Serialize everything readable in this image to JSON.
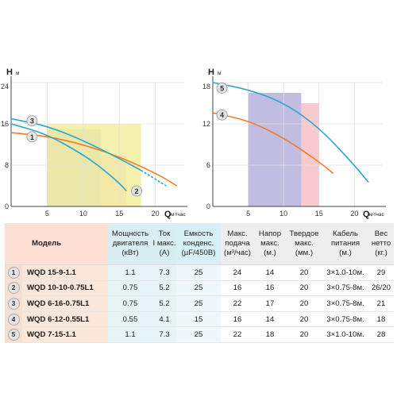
{
  "chart_data": [
    {
      "type": "line",
      "y_label": "H",
      "y_unit": "м",
      "x_label": "Q",
      "x_unit": "м³/час",
      "xlim": [
        0,
        24
      ],
      "ylim": [
        0,
        24
      ],
      "x_ticks": [
        5,
        10,
        15,
        20
      ],
      "y_ticks": [
        0,
        8,
        16,
        24
      ],
      "regions": [
        {
          "x": [
            5,
            12.5
          ],
          "y_top": 15,
          "color": "#b6b0dc"
        },
        {
          "x": [
            12.5,
            16
          ],
          "y_top": 10,
          "color": "#f4c1c6"
        },
        {
          "x": [
            5,
            18
          ],
          "y_top": 16,
          "color": "#f2ee9f"
        }
      ],
      "series": [
        {
          "name": "1",
          "color": "#f47a26",
          "x": [
            0,
            5,
            10,
            15,
            20,
            23
          ],
          "y": [
            14.3,
            13.6,
            12,
            9.6,
            6.5,
            4
          ]
        },
        {
          "name": "2",
          "color": "#2aa6cf",
          "x": [
            0,
            5,
            10,
            12.5,
            15,
            16
          ],
          "y": [
            16,
            14,
            10,
            7.5,
            4.5,
            3
          ]
        },
        {
          "name": "3",
          "color": "#2aa6cf",
          "x": [
            0,
            5,
            10,
            15,
            18
          ],
          "y": [
            17,
            15.6,
            12.8,
            9.3,
            7
          ],
          "dashed_tail": {
            "x": [
              18,
              21.5
            ],
            "y": [
              7,
              4
            ]
          }
        }
      ],
      "labels": [
        {
          "text": "3",
          "x": 2.9,
          "y": 16.6
        },
        {
          "text": "1",
          "x": 2.9,
          "y": 13.5
        },
        {
          "text": "2",
          "x": 17.4,
          "y": 3
        }
      ]
    },
    {
      "type": "line",
      "y_label": "H",
      "y_unit": "м",
      "x_label": "Q",
      "x_unit": "м³/час",
      "xlim": [
        0,
        24
      ],
      "ylim": [
        0,
        18
      ],
      "x_ticks": [
        5,
        10,
        15,
        20
      ],
      "y_ticks": [
        0,
        6,
        12,
        18
      ],
      "regions": [
        {
          "x": [
            5,
            12.5
          ],
          "y_top": 16.5,
          "color": "#b6b0dc"
        },
        {
          "x": [
            12.5,
            15
          ],
          "y_top": 15,
          "color": "#f4c1c6"
        }
      ],
      "series": [
        {
          "name": "5",
          "color": "#2aa6cf",
          "x": [
            0,
            5,
            10,
            15,
            20,
            22
          ],
          "y": [
            18,
            17,
            15.1,
            11.5,
            6,
            3.5
          ]
        },
        {
          "name": "4",
          "color": "#f47a26",
          "x": [
            0,
            5,
            10,
            15,
            17
          ],
          "y": [
            13.6,
            12.5,
            10,
            6.5,
            4.8
          ]
        }
      ],
      "labels": [
        {
          "text": "5",
          "x": 1.3,
          "y": 17.2
        },
        {
          "text": "4",
          "x": 1.3,
          "y": 13.3
        }
      ]
    }
  ],
  "table": {
    "headers": [
      "Модель",
      "Мощность двигателя (кВт)",
      "Ток I макс. (А)",
      "Емкость конденс. (µF/450B)",
      "Макс. подача (м³/час)",
      "Напор макс. (м.)",
      "Твердое макс. (мм.)",
      "Кабель питания (м.)",
      "Вес нетто (кг.)"
    ],
    "header_lines": [
      [
        "Модель"
      ],
      [
        "Мощность",
        "двигателя",
        "(кВт)"
      ],
      [
        "Ток",
        "I макс.",
        "(А)"
      ],
      [
        "Емкость",
        "конденс.",
        "(µF/450B)"
      ],
      [
        "Макс.",
        "подача",
        "(м³/час)"
      ],
      [
        "Напор",
        "макс.",
        "(м.)"
      ],
      [
        "Твердое",
        "макс.",
        "(мм.)"
      ],
      [
        "Кабель",
        "питания",
        "(м.)"
      ],
      [
        "Вес",
        "нетто",
        "(кг.)"
      ]
    ],
    "rows": [
      [
        "1",
        "WQD 15-9-1.1",
        "1.1",
        "7.3",
        "25",
        "24",
        "14",
        "20",
        "3×1.0-10м.",
        "29"
      ],
      [
        "2",
        "WQD 10-10-0.75L1",
        "0.75",
        "5.2",
        "25",
        "16",
        "16",
        "20",
        "3×0.75-8м.",
        "26/20"
      ],
      [
        "3",
        "WQD 6-16-0.75L1",
        "0.75",
        "5.2",
        "25",
        "22",
        "17",
        "20",
        "3×0.75-8м.",
        "21"
      ],
      [
        "4",
        "WQD 6-12-0.55L1",
        "0.55",
        "4.1",
        "15",
        "16",
        "14",
        "20",
        "3×0.75-8м.",
        "18"
      ],
      [
        "5",
        "WQD 7-15-1.1",
        "1.1",
        "7.3",
        "25",
        "22",
        "18",
        "20",
        "3×1.0-10м.",
        "28"
      ]
    ]
  }
}
